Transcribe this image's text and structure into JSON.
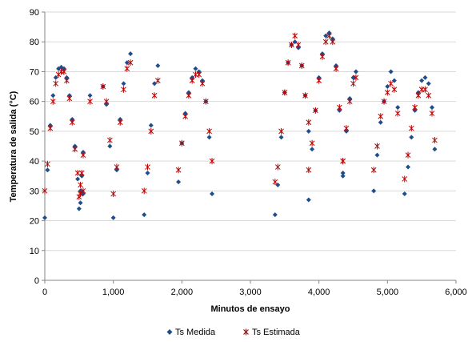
{
  "chart_data": {
    "type": "scatter",
    "xlabel": "Minutos de ensayo",
    "ylabel": "Temperatura de salida (°C)",
    "xlim": [
      0,
      6000
    ],
    "ylim": [
      0,
      90
    ],
    "x_ticks": [
      0,
      1000,
      2000,
      3000,
      4000,
      5000,
      6000
    ],
    "x_tick_labels": [
      "0",
      "1,000",
      "2,000",
      "3,000",
      "4,000",
      "5,000",
      "6,000"
    ],
    "y_ticks": [
      0,
      10,
      20,
      30,
      40,
      50,
      60,
      70,
      80,
      90
    ],
    "y_tick_labels": [
      "0",
      "10",
      "20",
      "30",
      "40",
      "50",
      "60",
      "70",
      "80",
      "90"
    ],
    "grid": "horizontal",
    "legend_position": "bottom",
    "series": [
      {
        "name": "Ts Medida",
        "color": "#1f4e8c",
        "marker": "diamond",
        "segments": [
          {
            "x": [
              0,
              40,
              80,
              120,
              160,
              200,
              240,
              280,
              320,
              360,
              400,
              440,
              480,
              520,
              560
            ],
            "y": [
              21,
              37,
              52,
              62,
              68,
              71,
              71.5,
              71,
              68,
              62,
              54,
              45,
              34,
              26,
              29
            ]
          },
          {
            "x": [
              500,
              520,
              540,
              560
            ],
            "y": [
              24,
              30,
              35,
              43
            ]
          },
          {
            "x": [
              660
            ],
            "y": [
              62
            ]
          },
          {
            "x": [
              850,
              900,
              950,
              1000,
              1050,
              1100,
              1150,
              1200,
              1250
            ],
            "y": [
              65,
              59,
              45,
              21,
              37,
              54,
              66,
              73,
              76
            ]
          },
          {
            "x": [
              1450,
              1500,
              1550,
              1600,
              1650
            ],
            "y": [
              22,
              36,
              52,
              66,
              72
            ]
          },
          {
            "x": [
              1950,
              2000,
              2050,
              2100,
              2150,
              2200,
              2250,
              2300,
              2350,
              2400,
              2440
            ],
            "y": [
              33,
              46,
              56,
              63,
              68,
              71,
              70,
              67,
              60,
              48,
              29
            ]
          },
          {
            "x": [
              3360,
              3400,
              3450,
              3500,
              3550,
              3600,
              3650,
              3700,
              3750,
              3800,
              3850
            ],
            "y": [
              22,
              32,
              48,
              63,
              73,
              79,
              80,
              78,
              72,
              62,
              50
            ]
          },
          {
            "x": [
              3850,
              3900,
              3950,
              4000,
              4050,
              4100,
              4150,
              4200,
              4250,
              4300,
              4350
            ],
            "y": [
              27,
              44,
              57,
              68,
              76,
              82,
              83,
              81,
              72,
              57,
              35
            ]
          },
          {
            "x": [
              4350,
              4400,
              4450,
              4500,
              4540
            ],
            "y": [
              36,
              50,
              61,
              68,
              70
            ]
          },
          {
            "x": [
              4800,
              4850,
              4900,
              4950,
              5000,
              5050,
              5100,
              5150
            ],
            "y": [
              30,
              42,
              53,
              60,
              65,
              70,
              67,
              58
            ]
          },
          {
            "x": [
              5250,
              5300,
              5350,
              5400,
              5450,
              5500,
              5550,
              5600,
              5650,
              5690
            ],
            "y": [
              29,
              38,
              48,
              57,
              63,
              67,
              68,
              66,
              58,
              44
            ]
          }
        ]
      },
      {
        "name": "Ts Estimada",
        "color": "#c00000",
        "marker": "asterisk",
        "segments": [
          {
            "x": [
              0,
              40,
              80,
              120,
              160,
              200,
              240,
              280,
              320,
              360,
              400,
              440,
              480,
              520,
              560
            ],
            "y": [
              30,
              39,
              51,
              60,
              66,
              69,
              70,
              70,
              67,
              61,
              53,
              44,
              36,
              29,
              30
            ]
          },
          {
            "x": [
              500,
              520,
              540,
              560
            ],
            "y": [
              28,
              32,
              36,
              42
            ]
          },
          {
            "x": [
              660
            ],
            "y": [
              60
            ]
          },
          {
            "x": [
              850,
              900,
              950,
              1000,
              1050,
              1100,
              1150,
              1200,
              1250
            ],
            "y": [
              65,
              60,
              47,
              29,
              38,
              53,
              64,
              71,
              73
            ]
          },
          {
            "x": [
              1450,
              1500,
              1550,
              1600,
              1650
            ],
            "y": [
              30,
              38,
              50,
              62,
              67
            ]
          },
          {
            "x": [
              1950,
              2000,
              2050,
              2100,
              2150,
              2200,
              2250,
              2300,
              2350,
              2400,
              2440
            ],
            "y": [
              37,
              46,
              55,
              62,
              67,
              69,
              69,
              66,
              60,
              50,
              40
            ]
          },
          {
            "x": [
              3360,
              3400,
              3450,
              3500,
              3550,
              3600,
              3650,
              3700,
              3750,
              3800,
              3850
            ],
            "y": [
              33,
              38,
              50,
              63,
              73,
              79,
              82,
              79,
              72,
              62,
              53
            ]
          },
          {
            "x": [
              3850,
              3900,
              3950,
              4000,
              4050,
              4100,
              4150,
              4200,
              4250,
              4300,
              4350
            ],
            "y": [
              37,
              46,
              57,
              67,
              75,
              80,
              82,
              80,
              71,
              58,
              40
            ]
          },
          {
            "x": [
              4350,
              4400,
              4450,
              4500,
              4540
            ],
            "y": [
              40,
              51,
              60,
              66,
              68
            ]
          },
          {
            "x": [
              4800,
              4850,
              4900,
              4950,
              5000,
              5050,
              5100,
              5150
            ],
            "y": [
              37,
              45,
              55,
              60,
              63,
              66,
              64,
              56
            ]
          },
          {
            "x": [
              5250,
              5300,
              5350,
              5400,
              5450,
              5500,
              5550,
              5600,
              5650,
              5690
            ],
            "y": [
              34,
              42,
              51,
              58,
              62,
              64,
              64,
              62,
              56,
              47
            ]
          }
        ]
      }
    ]
  }
}
